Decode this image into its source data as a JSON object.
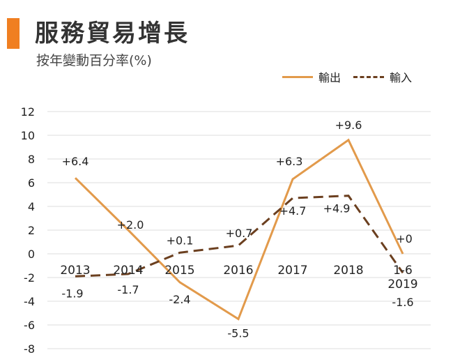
{
  "header": {
    "title": "服務貿易增長",
    "subtitle": "按年變動百分率(%)"
  },
  "colors": {
    "accent": "#f07f21",
    "series_output": "#e29a4b",
    "series_input": "#6b3f1f",
    "grid": "#dddddd"
  },
  "chart_data": {
    "type": "line",
    "title": "服務貿易增長",
    "subtitle": "按年變動百分率(%)",
    "xlabel": "",
    "ylabel": "",
    "categories": [
      "2013",
      "2014",
      "2015",
      "2016",
      "2017",
      "2018",
      "1-6 2019"
    ],
    "category_lines": [
      [
        "2013"
      ],
      [
        "2014"
      ],
      [
        "2015"
      ],
      [
        "2016"
      ],
      [
        "2017"
      ],
      [
        "2018"
      ],
      [
        "1-6",
        "2019"
      ]
    ],
    "ylim": [
      -8,
      12
    ],
    "yticks": [
      12,
      10,
      8,
      6,
      4,
      2,
      0,
      -2,
      -4,
      -6,
      -8
    ],
    "grid": true,
    "legend_position": "top-right",
    "series": [
      {
        "name": "輸出",
        "style": "solid",
        "values": [
          6.4,
          2.0,
          -2.4,
          -5.5,
          6.3,
          9.6,
          0
        ],
        "labels": [
          "+6.4",
          "+2.0",
          "-2.4",
          "-5.5",
          "+6.3",
          "+9.6",
          "+0"
        ]
      },
      {
        "name": "輸入",
        "style": "dashed",
        "values": [
          -1.9,
          -1.7,
          0.1,
          0.7,
          4.7,
          4.9,
          -1.6
        ],
        "labels": [
          "-1.9",
          "-1.7",
          "+0.1",
          "+0.7",
          "+4.7",
          "+4.9",
          "-1.6"
        ]
      }
    ]
  }
}
